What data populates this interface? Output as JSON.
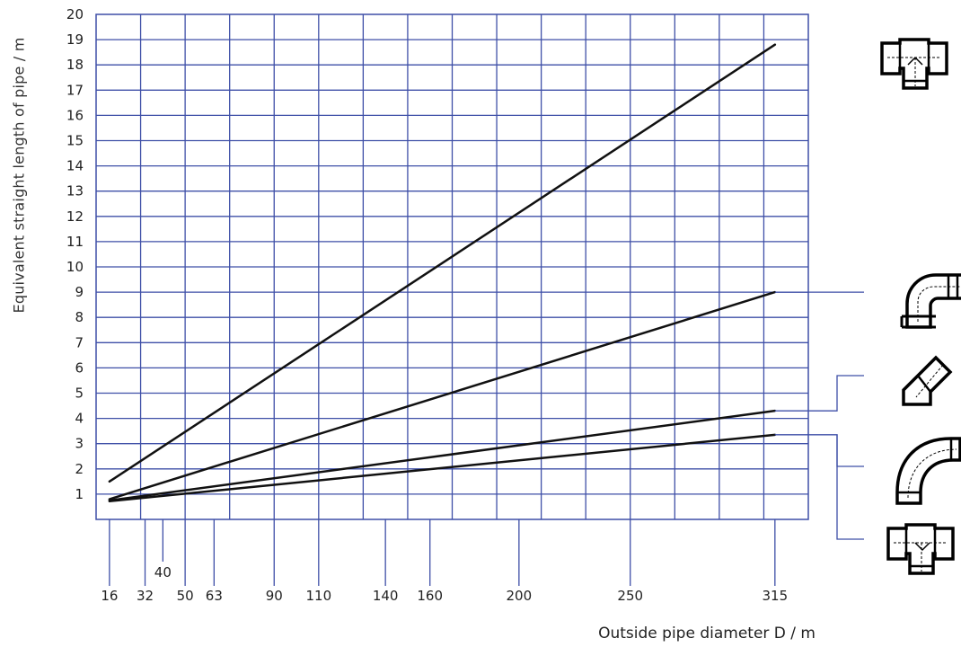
{
  "chart_data": {
    "type": "line",
    "xlabel": "Outside pipe diameter D / m",
    "ylabel": "Equivalent straight length of pipe / m",
    "x_ticks": [
      16,
      32,
      40,
      50,
      63,
      90,
      110,
      140,
      160,
      200,
      250,
      315
    ],
    "y_ticks": [
      1,
      2,
      3,
      4,
      5,
      6,
      7,
      8,
      9,
      10,
      11,
      12,
      13,
      14,
      15,
      16,
      17,
      18,
      19,
      20
    ],
    "xlim": [
      10,
      330
    ],
    "ylim": [
      0,
      20
    ],
    "grid": true,
    "series": [
      {
        "icon": "tee-branch-flow-fitting-icon",
        "x": [
          16,
          315
        ],
        "y": [
          1.5,
          18.8
        ]
      },
      {
        "icon": "elbow-90-fitting-icon",
        "x": [
          16,
          315
        ],
        "y": [
          0.8,
          9.0
        ]
      },
      {
        "icon": "elbow-45-fitting-icon",
        "x": [
          16,
          315
        ],
        "y": [
          0.75,
          4.3
        ]
      },
      {
        "icon": "long-radius-bend-icon",
        "x": [
          16,
          315
        ],
        "y": [
          0.72,
          3.35
        ]
      }
    ],
    "extra_fitting_icon": "tee-straight-flow-fitting-icon",
    "colors": {
      "grid": "#3e4fa7",
      "line": "#111111",
      "connector": "#3e4fa7"
    }
  }
}
